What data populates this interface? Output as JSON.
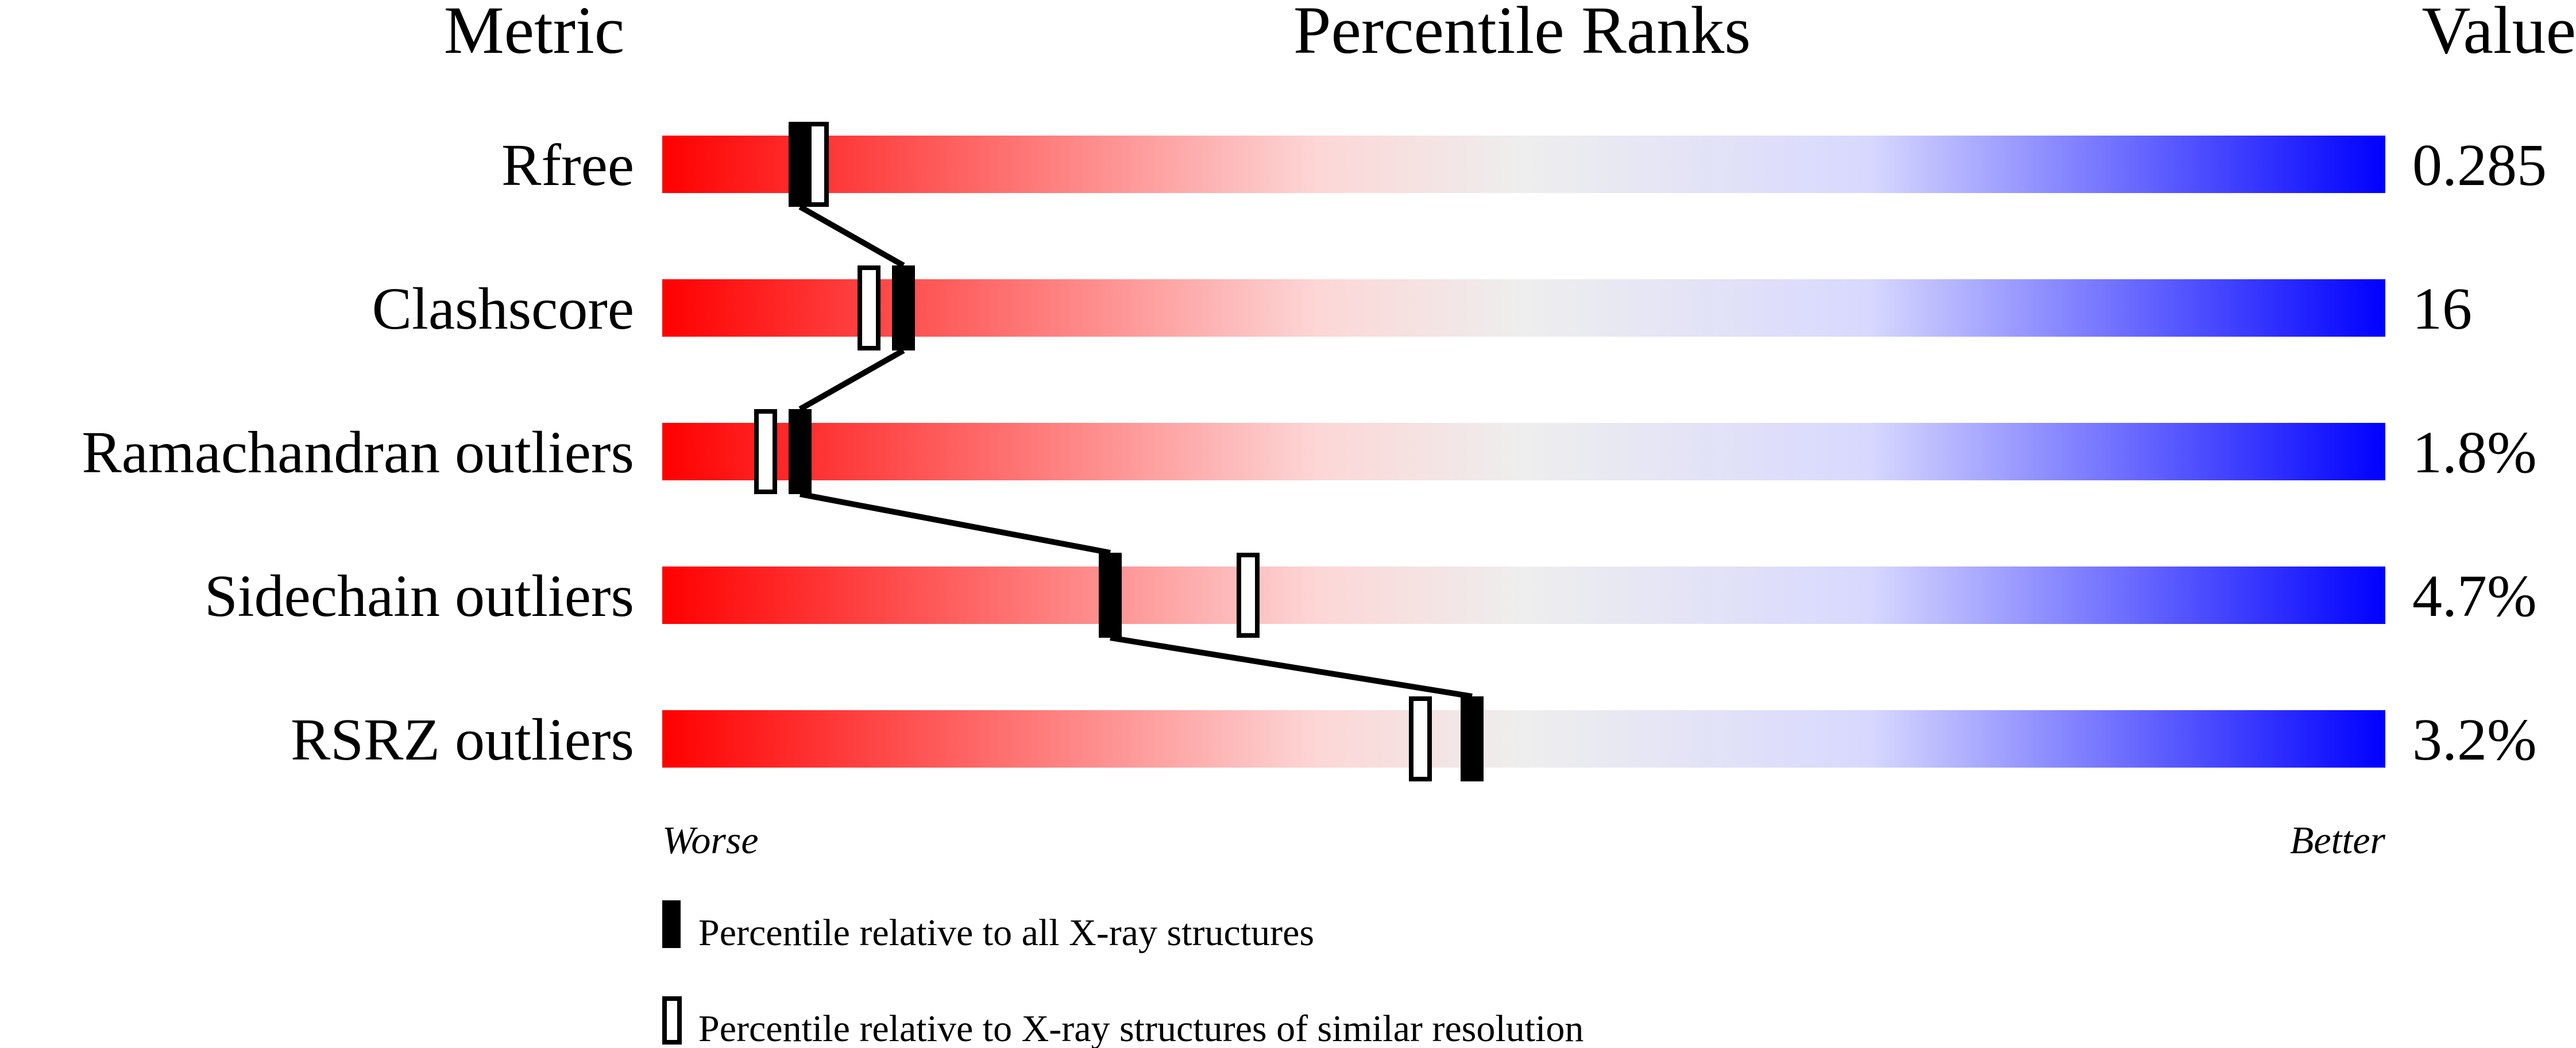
{
  "chart_data": {
    "type": "percentile-slider",
    "headers": {
      "metric": "Metric",
      "ranks": "Percentile Ranks",
      "value": "Value"
    },
    "xlim": [
      0,
      100
    ],
    "axis_labels": {
      "left": "Worse",
      "right": "Better"
    },
    "gradient_colors": [
      "#ff0000",
      "#fdd6d6",
      "#eeeeee",
      "#d8d8ff",
      "#0000ff"
    ],
    "metrics": [
      {
        "name": "Rfree",
        "value": "0.285",
        "percentile_all": 8,
        "percentile_similar": 9
      },
      {
        "name": "Clashscore",
        "value": "16",
        "percentile_all": 14,
        "percentile_similar": 12
      },
      {
        "name": "Ramachandran outliers",
        "value": "1.8%",
        "percentile_all": 8,
        "percentile_similar": 6
      },
      {
        "name": "Sidechain outliers",
        "value": "4.7%",
        "percentile_all": 26,
        "percentile_similar": 34
      },
      {
        "name": "RSRZ outliers",
        "value": "3.2%",
        "percentile_all": 47,
        "percentile_similar": 44
      }
    ],
    "legend": [
      {
        "marker": "filled",
        "label": "Percentile relative to all X-ray structures"
      },
      {
        "marker": "open",
        "label": "Percentile relative to X-ray structures of similar resolution"
      }
    ]
  }
}
